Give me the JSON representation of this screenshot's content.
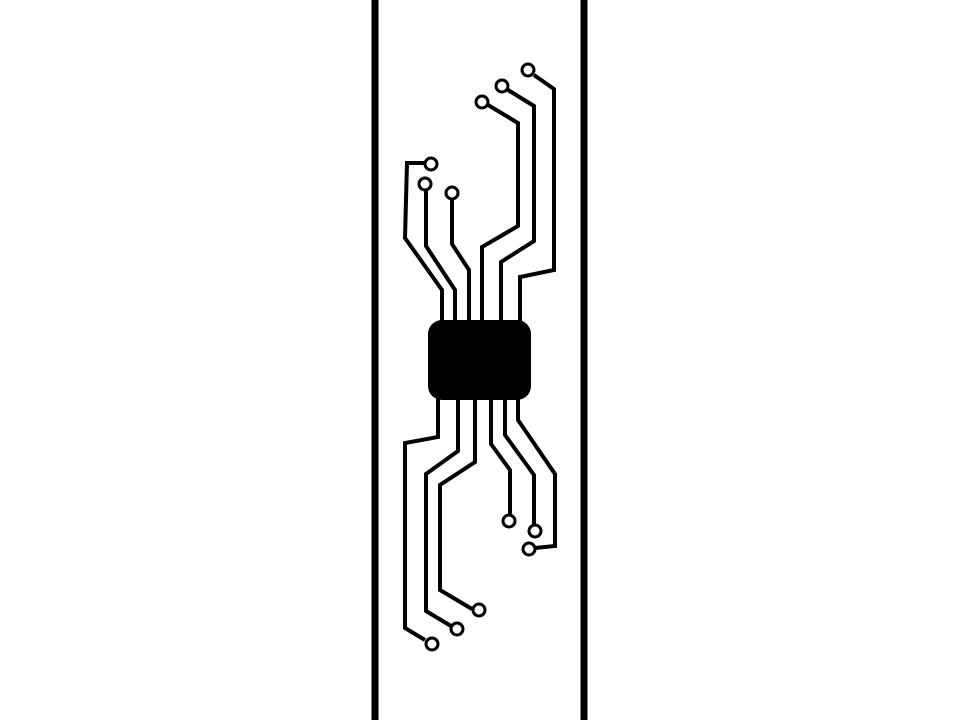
{
  "colors": {
    "background": "#ffffff",
    "ink": "#000000"
  },
  "icons": [
    "microchip-icon",
    "circuit-trace-icon",
    "via-pad-icon"
  ]
}
